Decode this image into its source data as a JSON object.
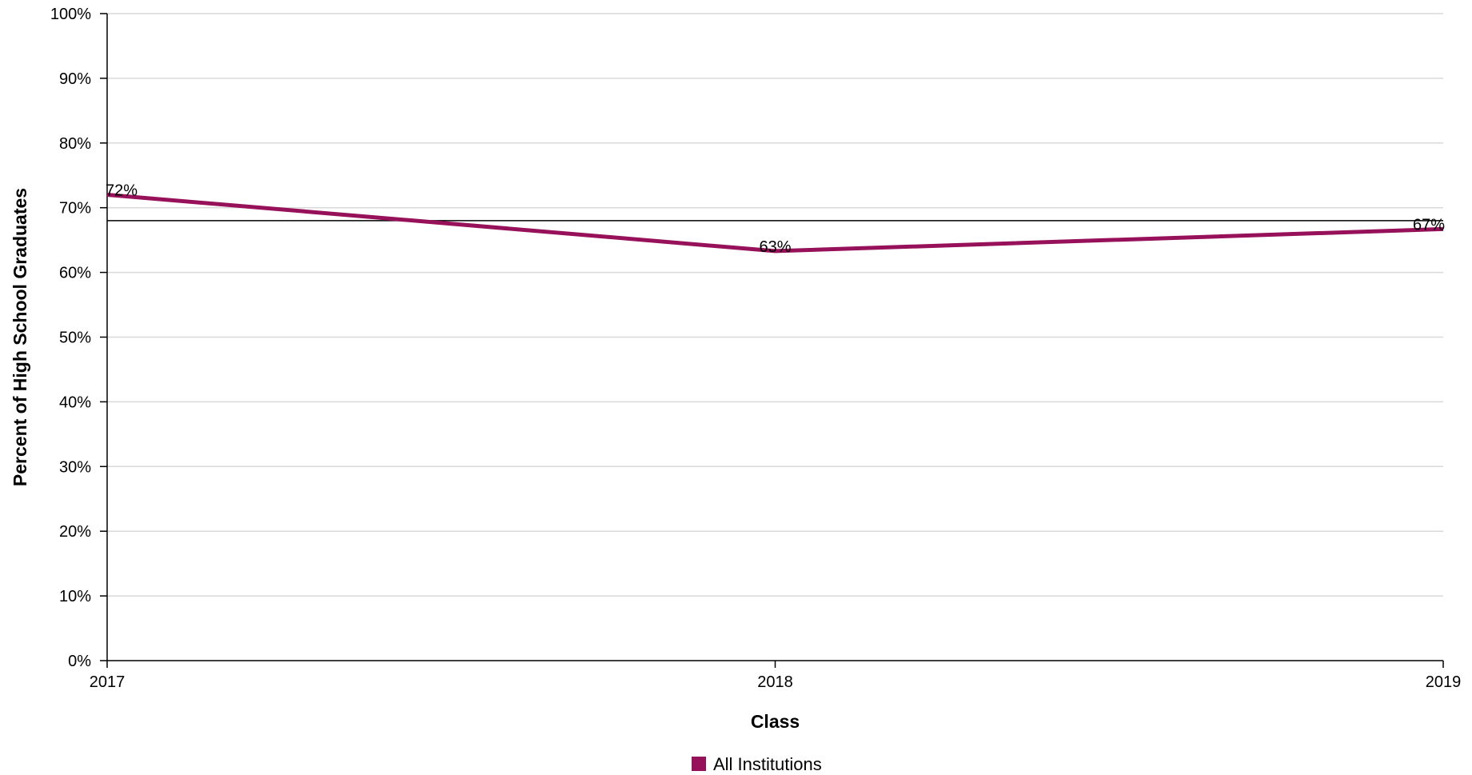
{
  "chart_data": {
    "type": "line",
    "title": "",
    "xlabel": "Class",
    "ylabel": "Percent of High School Graduates",
    "x": [
      "2017",
      "2018",
      "2019"
    ],
    "series": [
      {
        "name": "All Institutions",
        "values": [
          72,
          63.3,
          66.7
        ],
        "labels": [
          "72%",
          "63%",
          "67%"
        ],
        "color": "#97105A"
      }
    ],
    "reference_line": {
      "value": 68,
      "color": "#000000"
    },
    "ylim": [
      0,
      100
    ],
    "yticks": [
      0,
      10,
      20,
      30,
      40,
      50,
      60,
      70,
      80,
      90,
      100
    ],
    "ytick_labels": [
      "0%",
      "10%",
      "20%",
      "30%",
      "40%",
      "50%",
      "60%",
      "70%",
      "80%",
      "90%",
      "100%"
    ],
    "grid": true,
    "legend_position": "bottom"
  }
}
